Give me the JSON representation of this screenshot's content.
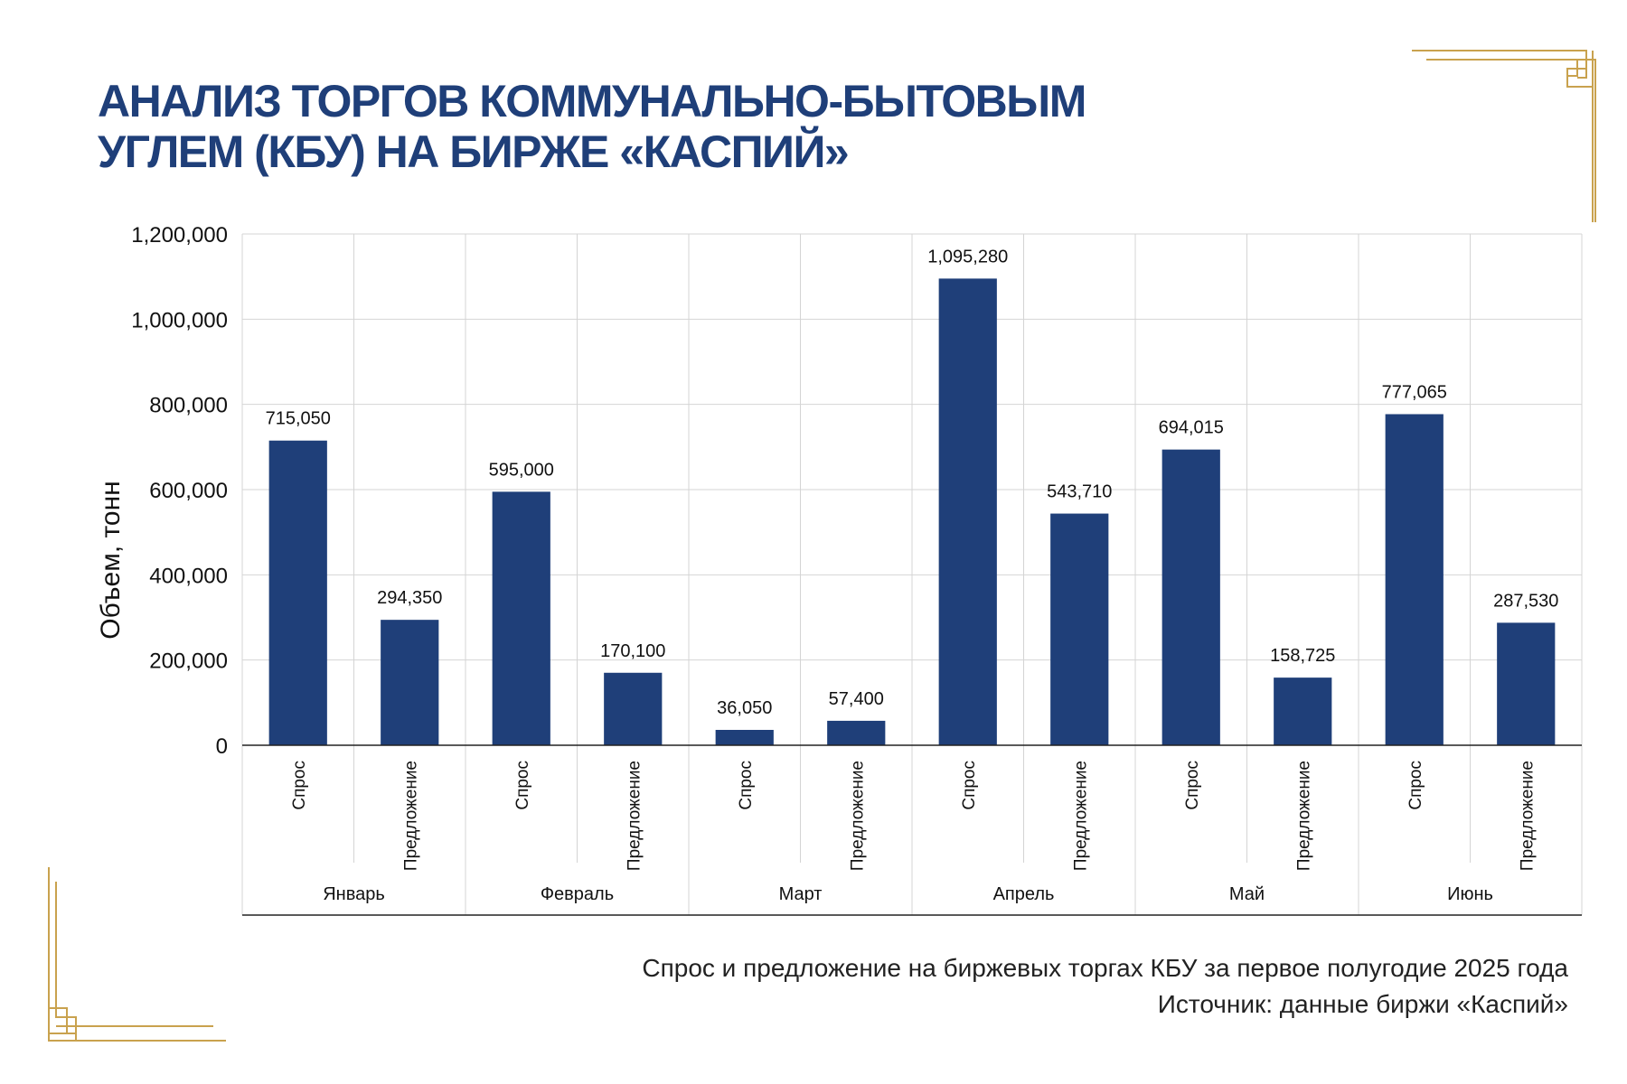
{
  "title_line1": "АНАЛИЗ ТОРГОВ КОММУНАЛЬНО-БЫТОВЫМ",
  "title_line2": "УГЛЕМ (КБУ) НА БИРЖЕ «КАСПИЙ»",
  "caption_line1": "Спрос и предложение на биржевых торгах КБУ за первое полугодие 2025 года",
  "caption_line2": "Источник: данные биржи «Каспий»",
  "colors": {
    "title": "#1f3f79",
    "bar": "#1f3f79",
    "grid": "#d4d4d4",
    "ornament": "#c9a24e"
  },
  "chart_data": {
    "type": "bar",
    "ylabel": "Объем, тонн",
    "ylim": [
      0,
      1200000
    ],
    "yticks": [
      0,
      200000,
      400000,
      600000,
      800000,
      1000000,
      1200000
    ],
    "ytick_labels": [
      "0",
      "200,000",
      "400,000",
      "600,000",
      "800,000",
      "1,000,000",
      "1,200,000"
    ],
    "grid": true,
    "groups": [
      {
        "month": "Январь",
        "bars": [
          {
            "label": "Спрос",
            "value": 715050,
            "value_label": "715,050"
          },
          {
            "label": "Предложение",
            "value": 294350,
            "value_label": "294,350"
          }
        ]
      },
      {
        "month": "Февраль",
        "bars": [
          {
            "label": "Спрос",
            "value": 595000,
            "value_label": "595,000"
          },
          {
            "label": "Предложение",
            "value": 170100,
            "value_label": "170,100"
          }
        ]
      },
      {
        "month": "Март",
        "bars": [
          {
            "label": "Спрос",
            "value": 36050,
            "value_label": "36,050"
          },
          {
            "label": "Предложение",
            "value": 57400,
            "value_label": "57,400"
          }
        ]
      },
      {
        "month": "Апрель",
        "bars": [
          {
            "label": "Спрос",
            "value": 1095280,
            "value_label": "1,095,280"
          },
          {
            "label": "Предложение",
            "value": 543710,
            "value_label": "543,710"
          }
        ]
      },
      {
        "month": "Май",
        "bars": [
          {
            "label": "Спрос",
            "value": 694015,
            "value_label": "694,015"
          },
          {
            "label": "Предложение",
            "value": 158725,
            "value_label": "158,725"
          }
        ]
      },
      {
        "month": "Июнь",
        "bars": [
          {
            "label": "Спрос",
            "value": 777065,
            "value_label": "777,065"
          },
          {
            "label": "Предложение",
            "value": 287530,
            "value_label": "287,530"
          }
        ]
      }
    ]
  }
}
